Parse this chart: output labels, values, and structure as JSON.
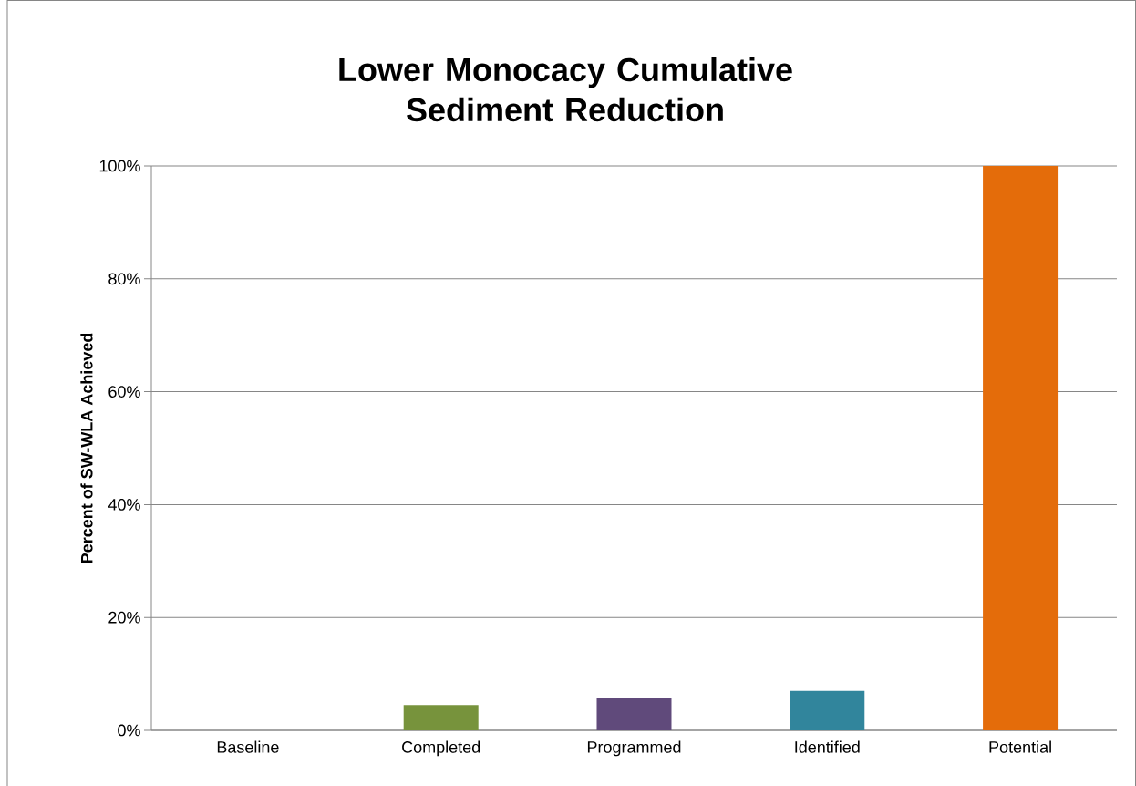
{
  "chart_data": {
    "type": "bar",
    "title": "Lower Monocacy Cumulative Sediment Reduction",
    "ylabel": "Percent of SW-WLA Achieved",
    "categories": [
      "Baseline",
      "Completed",
      "Programmed",
      "Identified",
      "Potential"
    ],
    "values": [
      0,
      4.5,
      5.8,
      7,
      100
    ],
    "colors": [
      "#4f81bd",
      "#77933c",
      "#604a7b",
      "#31859c",
      "#e46c0a"
    ],
    "ylim": [
      0,
      100
    ],
    "yticks": [
      {
        "value": 0,
        "label": "0%"
      },
      {
        "value": 20,
        "label": "20%"
      },
      {
        "value": 40,
        "label": "40%"
      },
      {
        "value": 60,
        "label": "60%"
      },
      {
        "value": 80,
        "label": "80%"
      },
      {
        "value": 100,
        "label": "100%"
      }
    ],
    "grid": "y"
  }
}
